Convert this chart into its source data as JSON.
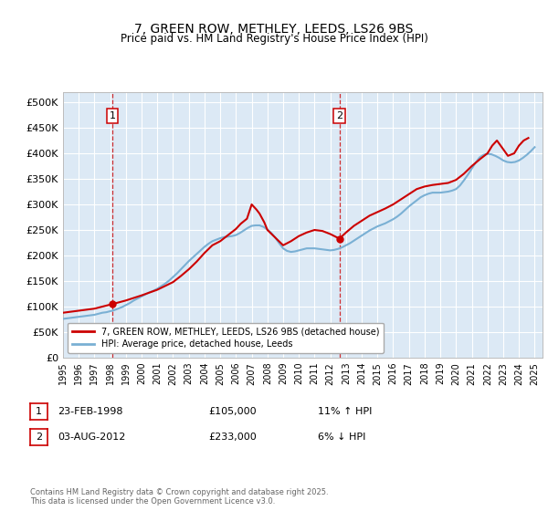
{
  "title": "7, GREEN ROW, METHLEY, LEEDS, LS26 9BS",
  "subtitle": "Price paid vs. HM Land Registry's House Price Index (HPI)",
  "ylim": [
    0,
    520000
  ],
  "yticks": [
    0,
    50000,
    100000,
    150000,
    200000,
    250000,
    300000,
    350000,
    400000,
    450000,
    500000
  ],
  "ytick_labels": [
    "£0",
    "£50K",
    "£100K",
    "£150K",
    "£200K",
    "£250K",
    "£300K",
    "£350K",
    "£400K",
    "£450K",
    "£500K"
  ],
  "background_color": "#ffffff",
  "plot_bg_color": "#dce9f5",
  "grid_color": "#ffffff",
  "legend_label_red": "7, GREEN ROW, METHLEY, LEEDS, LS26 9BS (detached house)",
  "legend_label_blue": "HPI: Average price, detached house, Leeds",
  "red_color": "#cc0000",
  "blue_color": "#7ab0d4",
  "annotation1_date": "23-FEB-1998",
  "annotation1_price": "£105,000",
  "annotation1_hpi": "11% ↑ HPI",
  "annotation2_date": "03-AUG-2012",
  "annotation2_price": "£233,000",
  "annotation2_hpi": "6% ↓ HPI",
  "footnote": "Contains HM Land Registry data © Crown copyright and database right 2025.\nThis data is licensed under the Open Government Licence v3.0.",
  "vline1_x": 1998.15,
  "vline2_x": 2012.58,
  "marker1_x": 1998.15,
  "marker1_y": 105000,
  "marker2_x": 2012.58,
  "marker2_y": 233000,
  "hpi_years": [
    1995.0,
    1995.25,
    1995.5,
    1995.75,
    1996.0,
    1996.25,
    1996.5,
    1996.75,
    1997.0,
    1997.25,
    1997.5,
    1997.75,
    1998.0,
    1998.25,
    1998.5,
    1998.75,
    1999.0,
    1999.25,
    1999.5,
    1999.75,
    2000.0,
    2000.25,
    2000.5,
    2000.75,
    2001.0,
    2001.25,
    2001.5,
    2001.75,
    2002.0,
    2002.25,
    2002.5,
    2002.75,
    2003.0,
    2003.25,
    2003.5,
    2003.75,
    2004.0,
    2004.25,
    2004.5,
    2004.75,
    2005.0,
    2005.25,
    2005.5,
    2005.75,
    2006.0,
    2006.25,
    2006.5,
    2006.75,
    2007.0,
    2007.25,
    2007.5,
    2007.75,
    2008.0,
    2008.25,
    2008.5,
    2008.75,
    2009.0,
    2009.25,
    2009.5,
    2009.75,
    2010.0,
    2010.25,
    2010.5,
    2010.75,
    2011.0,
    2011.25,
    2011.5,
    2011.75,
    2012.0,
    2012.25,
    2012.5,
    2012.75,
    2013.0,
    2013.25,
    2013.5,
    2013.75,
    2014.0,
    2014.25,
    2014.5,
    2014.75,
    2015.0,
    2015.25,
    2015.5,
    2015.75,
    2016.0,
    2016.25,
    2016.5,
    2016.75,
    2017.0,
    2017.25,
    2017.5,
    2017.75,
    2018.0,
    2018.25,
    2018.5,
    2018.75,
    2019.0,
    2019.25,
    2019.5,
    2019.75,
    2020.0,
    2020.25,
    2020.5,
    2020.75,
    2021.0,
    2021.25,
    2021.5,
    2021.75,
    2022.0,
    2022.25,
    2022.5,
    2022.75,
    2023.0,
    2023.25,
    2023.5,
    2023.75,
    2024.0,
    2024.25,
    2024.5,
    2024.75,
    2025.0
  ],
  "hpi_values": [
    76000,
    77000,
    78000,
    79000,
    80000,
    81000,
    82000,
    83000,
    84000,
    86000,
    88000,
    89000,
    91000,
    93000,
    96000,
    99000,
    103000,
    107000,
    112000,
    116000,
    120000,
    124000,
    128000,
    131000,
    135000,
    140000,
    145000,
    151000,
    158000,
    165000,
    173000,
    181000,
    189000,
    196000,
    203000,
    210000,
    217000,
    223000,
    228000,
    231000,
    234000,
    236000,
    237000,
    238000,
    240000,
    244000,
    249000,
    254000,
    258000,
    259000,
    259000,
    256000,
    251000,
    244000,
    235000,
    224000,
    214000,
    209000,
    207000,
    208000,
    210000,
    212000,
    214000,
    214000,
    214000,
    213000,
    212000,
    211000,
    210000,
    211000,
    213000,
    216000,
    220000,
    224000,
    229000,
    234000,
    239000,
    244000,
    249000,
    253000,
    257000,
    260000,
    263000,
    267000,
    271000,
    276000,
    282000,
    289000,
    296000,
    302000,
    308000,
    314000,
    318000,
    321000,
    323000,
    323000,
    323000,
    324000,
    325000,
    327000,
    330000,
    337000,
    347000,
    358000,
    370000,
    382000,
    392000,
    397000,
    399000,
    398000,
    395000,
    391000,
    386000,
    383000,
    382000,
    383000,
    386000,
    391000,
    397000,
    404000,
    412000
  ],
  "red_years": [
    1995.0,
    1995.5,
    1996.0,
    1996.5,
    1997.0,
    1997.5,
    1998.15,
    1999.0,
    2000.0,
    2001.0,
    2002.0,
    2002.5,
    2003.0,
    2003.5,
    2004.0,
    2004.5,
    2005.0,
    2005.5,
    2006.0,
    2006.3,
    2006.7,
    2007.0,
    2007.3,
    2007.5,
    2007.8,
    2008.0,
    2008.5,
    2009.0,
    2009.5,
    2010.0,
    2010.5,
    2011.0,
    2011.5,
    2012.0,
    2012.58,
    2013.0,
    2013.5,
    2014.0,
    2014.5,
    2015.0,
    2015.5,
    2016.0,
    2016.5,
    2017.0,
    2017.5,
    2018.0,
    2018.5,
    2019.0,
    2019.5,
    2020.0,
    2020.5,
    2021.0,
    2021.5,
    2022.0,
    2022.3,
    2022.6,
    2023.0,
    2023.3,
    2023.7,
    2024.0,
    2024.3,
    2024.6
  ],
  "red_values": [
    88000,
    90000,
    92000,
    94000,
    96000,
    100000,
    105000,
    112000,
    122000,
    133000,
    148000,
    160000,
    173000,
    188000,
    205000,
    220000,
    228000,
    240000,
    252000,
    262000,
    272000,
    300000,
    290000,
    282000,
    265000,
    250000,
    235000,
    220000,
    228000,
    238000,
    245000,
    250000,
    248000,
    242000,
    233000,
    245000,
    258000,
    268000,
    278000,
    285000,
    292000,
    300000,
    310000,
    320000,
    330000,
    335000,
    338000,
    340000,
    342000,
    348000,
    360000,
    375000,
    388000,
    400000,
    415000,
    425000,
    408000,
    395000,
    400000,
    415000,
    425000,
    430000
  ],
  "xtick_years": [
    1995,
    1996,
    1997,
    1998,
    1999,
    2000,
    2001,
    2002,
    2003,
    2004,
    2005,
    2006,
    2007,
    2008,
    2009,
    2010,
    2011,
    2012,
    2013,
    2014,
    2015,
    2016,
    2017,
    2018,
    2019,
    2020,
    2021,
    2022,
    2023,
    2024,
    2025
  ]
}
